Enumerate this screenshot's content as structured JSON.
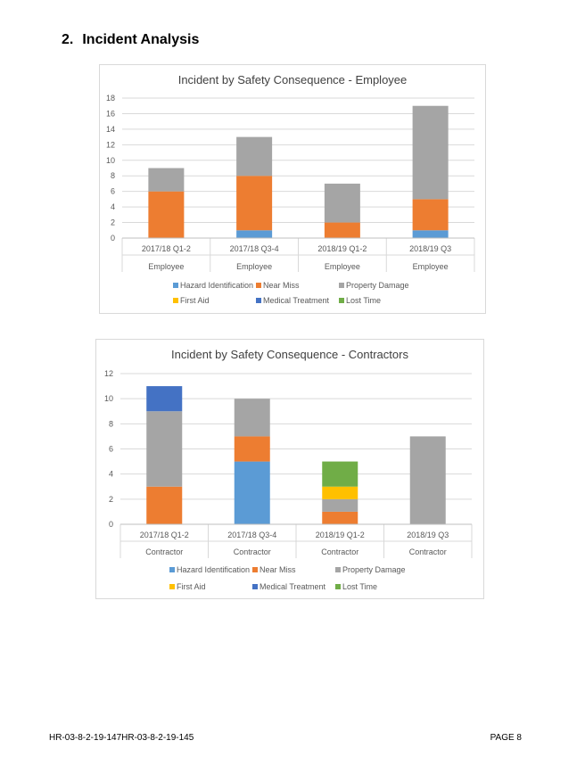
{
  "heading": {
    "number": "2.",
    "title": "Incident Analysis"
  },
  "colors": {
    "Hazard Identification": "#5b9bd5",
    "Near Miss": "#ed7d31",
    "Property Damage": "#a5a5a5",
    "First Aid": "#ffc000",
    "Medical Treatment": "#4472c4",
    "Lost Time": "#70ad47"
  },
  "chart_data": [
    {
      "type": "bar",
      "stacked": true,
      "title": "Incident by Safety Consequence - Employee",
      "categories": [
        "2017/18 Q1-2",
        "2017/18 Q3-4",
        "2018/19 Q1-2",
        "2018/19 Q3"
      ],
      "category_group_labels": [
        "Employee",
        "Employee",
        "Employee",
        "Employee"
      ],
      "ylim": [
        0,
        18
      ],
      "yticks": [
        0,
        2,
        4,
        6,
        8,
        10,
        12,
        14,
        16,
        18
      ],
      "grid": true,
      "legend": "bottom",
      "series": [
        {
          "name": "Hazard Identification",
          "values": [
            0,
            1,
            0,
            1
          ]
        },
        {
          "name": "Near Miss",
          "values": [
            6,
            7,
            2,
            4
          ]
        },
        {
          "name": "Property Damage",
          "values": [
            3,
            5,
            5,
            12
          ]
        },
        {
          "name": "First Aid",
          "values": [
            0,
            0,
            0,
            0
          ]
        },
        {
          "name": "Medical Treatment",
          "values": [
            0,
            0,
            0,
            0
          ]
        },
        {
          "name": "Lost Time",
          "values": [
            0,
            0,
            0,
            0
          ]
        }
      ]
    },
    {
      "type": "bar",
      "stacked": true,
      "title": "Incident by Safety Consequence - Contractors",
      "categories": [
        "2017/18 Q1-2",
        "2017/18 Q3-4",
        "2018/19 Q1-2",
        "2018/19 Q3"
      ],
      "category_group_labels": [
        "Contractor",
        "Contractor",
        "Contractor",
        "Contractor"
      ],
      "ylim": [
        0,
        12
      ],
      "yticks": [
        0,
        2,
        4,
        6,
        8,
        10,
        12
      ],
      "grid": true,
      "legend": "bottom",
      "series": [
        {
          "name": "Hazard Identification",
          "values": [
            0,
            5,
            0,
            0
          ]
        },
        {
          "name": "Near Miss",
          "values": [
            3,
            2,
            1,
            0
          ]
        },
        {
          "name": "Property Damage",
          "values": [
            6,
            3,
            1,
            7
          ]
        },
        {
          "name": "First Aid",
          "values": [
            0,
            0,
            1,
            0
          ]
        },
        {
          "name": "Medical Treatment",
          "values": [
            2,
            0,
            0,
            0
          ]
        },
        {
          "name": "Lost Time",
          "values": [
            0,
            0,
            2,
            0
          ]
        }
      ]
    }
  ],
  "footer": {
    "left": "HR-03-8-2-19-147HR-03-8-2-19-145",
    "right": "PAGE 8"
  }
}
